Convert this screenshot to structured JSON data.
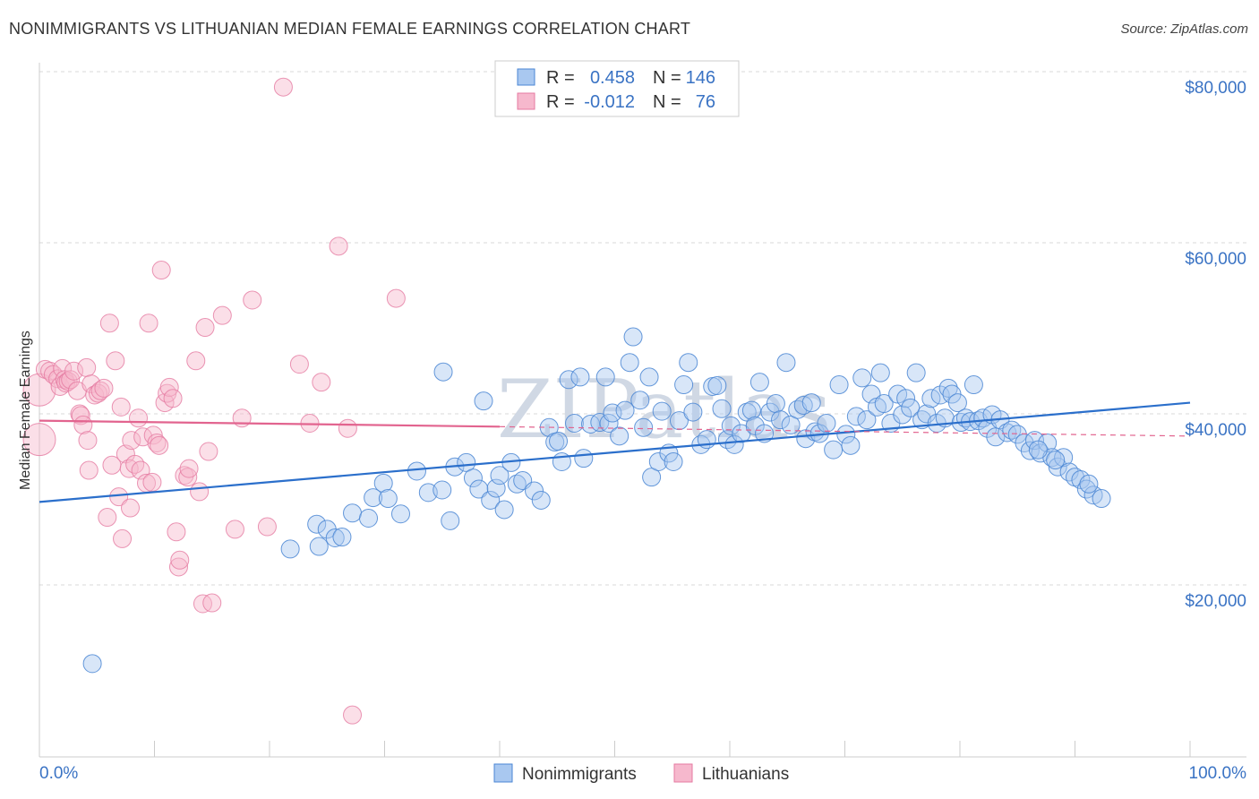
{
  "title": "NONIMMIGRANTS VS LITHUANIAN MEDIAN FEMALE EARNINGS CORRELATION CHART",
  "source": "Source: ZipAtlas.com",
  "watermark": "ZIPatlas",
  "colors": {
    "blue": "#4a86d4",
    "blue_fill": "#a9c8f0",
    "blue_line": "#2b6fcb",
    "pink": "#e57aa1",
    "pink_fill": "#f6b8cd",
    "pink_line": "#e2648f",
    "text_blue": "#3a73c4"
  },
  "legend": {
    "rows": [
      {
        "r_label": "R =",
        "r_value": "0.458",
        "n_label": "N =",
        "n_value": "146"
      },
      {
        "r_label": "R =",
        "r_value": "-0.012",
        "n_label": "N =",
        "n_value": "76"
      }
    ]
  },
  "bottom_legend": [
    "Nonimmigrants",
    "Lithuanians"
  ],
  "chart_data": {
    "type": "scatter",
    "ylabel": "Median Female Earnings",
    "xlabel": "",
    "x_tick_labels": [
      "0.0%",
      "100.0%"
    ],
    "y_tick_labels": [
      "$20,000",
      "$40,000",
      "$60,000",
      "$80,000"
    ],
    "xlim": [
      0,
      100
    ],
    "ylim": [
      2000,
      82000
    ],
    "grid": "horizontal dashed",
    "series": [
      {
        "name": "Nonimmigrants",
        "trend": {
          "x": [
            0,
            100
          ],
          "y": [
            29700,
            41300
          ]
        },
        "points": [
          [
            4.6,
            10800
          ],
          [
            21.8,
            24200
          ],
          [
            24.1,
            27100
          ],
          [
            24.3,
            24500
          ],
          [
            25.0,
            26500
          ],
          [
            25.7,
            25500
          ],
          [
            26.3,
            25600
          ],
          [
            27.2,
            28400
          ],
          [
            28.6,
            27800
          ],
          [
            29.0,
            30200
          ],
          [
            29.9,
            31900
          ],
          [
            30.3,
            30100
          ],
          [
            31.4,
            28300
          ],
          [
            32.8,
            33300
          ],
          [
            33.8,
            30800
          ],
          [
            35.0,
            31100
          ],
          [
            35.1,
            44900
          ],
          [
            35.7,
            27500
          ],
          [
            36.1,
            33800
          ],
          [
            37.1,
            34300
          ],
          [
            37.7,
            32500
          ],
          [
            38.2,
            31200
          ],
          [
            38.6,
            41500
          ],
          [
            39.2,
            29900
          ],
          [
            39.7,
            31300
          ],
          [
            40.0,
            32800
          ],
          [
            40.4,
            28800
          ],
          [
            41.0,
            34300
          ],
          [
            41.5,
            31800
          ],
          [
            42.0,
            32200
          ],
          [
            43.0,
            31000
          ],
          [
            43.6,
            29900
          ],
          [
            44.3,
            38400
          ],
          [
            44.8,
            36700
          ],
          [
            45.1,
            36800
          ],
          [
            45.4,
            34400
          ],
          [
            46.0,
            44000
          ],
          [
            46.5,
            38900
          ],
          [
            47.0,
            44300
          ],
          [
            47.3,
            34800
          ],
          [
            47.9,
            38800
          ],
          [
            48.7,
            39000
          ],
          [
            49.2,
            44300
          ],
          [
            49.5,
            38900
          ],
          [
            49.8,
            40100
          ],
          [
            50.4,
            37400
          ],
          [
            50.9,
            40400
          ],
          [
            51.3,
            46000
          ],
          [
            51.6,
            49000
          ],
          [
            52.2,
            41600
          ],
          [
            52.5,
            38400
          ],
          [
            53.0,
            44300
          ],
          [
            53.2,
            32600
          ],
          [
            53.8,
            34400
          ],
          [
            54.1,
            40300
          ],
          [
            54.7,
            35400
          ],
          [
            55.1,
            34400
          ],
          [
            55.6,
            39200
          ],
          [
            56.0,
            43400
          ],
          [
            56.4,
            46000
          ],
          [
            56.8,
            40200
          ],
          [
            57.5,
            36400
          ],
          [
            58.0,
            37000
          ],
          [
            58.5,
            43200
          ],
          [
            58.9,
            43300
          ],
          [
            59.3,
            40600
          ],
          [
            59.8,
            37000
          ],
          [
            60.1,
            38600
          ],
          [
            60.4,
            36400
          ],
          [
            61.0,
            37700
          ],
          [
            61.5,
            40200
          ],
          [
            61.9,
            40400
          ],
          [
            62.2,
            38600
          ],
          [
            62.6,
            43700
          ],
          [
            63.0,
            37700
          ],
          [
            63.5,
            40200
          ],
          [
            64.0,
            41200
          ],
          [
            64.4,
            39300
          ],
          [
            64.9,
            46000
          ],
          [
            65.3,
            38700
          ],
          [
            65.9,
            40500
          ],
          [
            66.4,
            41000
          ],
          [
            66.6,
            37100
          ],
          [
            67.1,
            41300
          ],
          [
            67.4,
            37900
          ],
          [
            67.8,
            37700
          ],
          [
            68.4,
            38900
          ],
          [
            69.0,
            35800
          ],
          [
            69.5,
            43400
          ],
          [
            70.1,
            37600
          ],
          [
            70.5,
            36300
          ],
          [
            71.0,
            39700
          ],
          [
            71.5,
            44200
          ],
          [
            71.9,
            39300
          ],
          [
            72.3,
            42300
          ],
          [
            72.8,
            40800
          ],
          [
            73.1,
            44800
          ],
          [
            73.4,
            41200
          ],
          [
            74.0,
            38900
          ],
          [
            74.6,
            42300
          ],
          [
            75.0,
            39900
          ],
          [
            75.3,
            41800
          ],
          [
            75.7,
            40700
          ],
          [
            76.2,
            44800
          ],
          [
            76.7,
            39300
          ],
          [
            77.1,
            40000
          ],
          [
            77.5,
            41800
          ],
          [
            78.0,
            38900
          ],
          [
            78.3,
            42200
          ],
          [
            78.7,
            39500
          ],
          [
            79.0,
            43000
          ],
          [
            79.3,
            42300
          ],
          [
            79.8,
            41300
          ],
          [
            80.1,
            39000
          ],
          [
            80.5,
            39500
          ],
          [
            80.9,
            39100
          ],
          [
            81.2,
            43400
          ],
          [
            81.6,
            39200
          ],
          [
            82.0,
            39500
          ],
          [
            82.4,
            38300
          ],
          [
            82.8,
            39900
          ],
          [
            83.1,
            37300
          ],
          [
            83.5,
            39300
          ],
          [
            84.1,
            37800
          ],
          [
            84.5,
            38100
          ],
          [
            85.0,
            37600
          ],
          [
            85.6,
            36600
          ],
          [
            86.1,
            35700
          ],
          [
            86.5,
            36900
          ],
          [
            87.0,
            35400
          ],
          [
            87.6,
            36600
          ],
          [
            88.0,
            34900
          ],
          [
            88.5,
            33800
          ],
          [
            89.0,
            34900
          ],
          [
            89.5,
            33200
          ],
          [
            90.0,
            32600
          ],
          [
            90.5,
            32300
          ],
          [
            91.0,
            31200
          ],
          [
            91.6,
            30500
          ],
          [
            92.3,
            30100
          ],
          [
            91.2,
            31800
          ],
          [
            86.8,
            35800
          ],
          [
            88.3,
            34600
          ]
        ]
      },
      {
        "name": "Lithuanians",
        "trend": {
          "x": [
            0,
            40
          ],
          "y": [
            39200,
            38500
          ]
        },
        "dashed_trend": {
          "x": [
            40,
            100
          ],
          "y": [
            38500,
            37400
          ]
        },
        "points": [
          [
            0.0,
            37000
          ],
          [
            0.0,
            42800
          ],
          [
            0.5,
            45200
          ],
          [
            0.9,
            45000
          ],
          [
            1.2,
            44600
          ],
          [
            1.6,
            44100
          ],
          [
            1.8,
            43200
          ],
          [
            2.0,
            45300
          ],
          [
            2.2,
            44000
          ],
          [
            2.3,
            43600
          ],
          [
            2.5,
            43800
          ],
          [
            2.7,
            44000
          ],
          [
            3.0,
            45000
          ],
          [
            3.3,
            42700
          ],
          [
            3.5,
            40000
          ],
          [
            3.6,
            39800
          ],
          [
            3.8,
            38700
          ],
          [
            4.1,
            45400
          ],
          [
            4.2,
            36900
          ],
          [
            4.3,
            33400
          ],
          [
            4.5,
            43500
          ],
          [
            4.8,
            42200
          ],
          [
            5.1,
            42400
          ],
          [
            5.3,
            42700
          ],
          [
            5.6,
            43000
          ],
          [
            5.9,
            27900
          ],
          [
            6.1,
            50600
          ],
          [
            6.3,
            34000
          ],
          [
            6.6,
            46200
          ],
          [
            6.9,
            30300
          ],
          [
            7.1,
            40800
          ],
          [
            7.2,
            25400
          ],
          [
            7.5,
            35300
          ],
          [
            7.8,
            33600
          ],
          [
            7.9,
            29000
          ],
          [
            8.0,
            36900
          ],
          [
            8.3,
            34100
          ],
          [
            8.6,
            39500
          ],
          [
            8.8,
            33400
          ],
          [
            9.0,
            37300
          ],
          [
            9.3,
            31900
          ],
          [
            9.5,
            50600
          ],
          [
            9.8,
            32000
          ],
          [
            9.9,
            37500
          ],
          [
            10.2,
            36600
          ],
          [
            10.4,
            36300
          ],
          [
            10.6,
            56800
          ],
          [
            10.9,
            41300
          ],
          [
            11.1,
            42400
          ],
          [
            11.3,
            43100
          ],
          [
            11.6,
            41800
          ],
          [
            11.9,
            26200
          ],
          [
            12.1,
            22100
          ],
          [
            12.2,
            22900
          ],
          [
            12.6,
            32800
          ],
          [
            12.9,
            32600
          ],
          [
            13.0,
            33600
          ],
          [
            13.6,
            46200
          ],
          [
            13.9,
            30900
          ],
          [
            14.2,
            17800
          ],
          [
            14.4,
            50100
          ],
          [
            14.7,
            35600
          ],
          [
            15.0,
            17900
          ],
          [
            15.9,
            51500
          ],
          [
            17.0,
            26500
          ],
          [
            17.6,
            39500
          ],
          [
            18.5,
            53300
          ],
          [
            19.8,
            26800
          ],
          [
            21.2,
            78200
          ],
          [
            22.6,
            45800
          ],
          [
            23.5,
            38900
          ],
          [
            24.5,
            43700
          ],
          [
            26.0,
            59600
          ],
          [
            26.8,
            38300
          ],
          [
            27.2,
            4800
          ],
          [
            31.0,
            53500
          ]
        ]
      }
    ]
  }
}
